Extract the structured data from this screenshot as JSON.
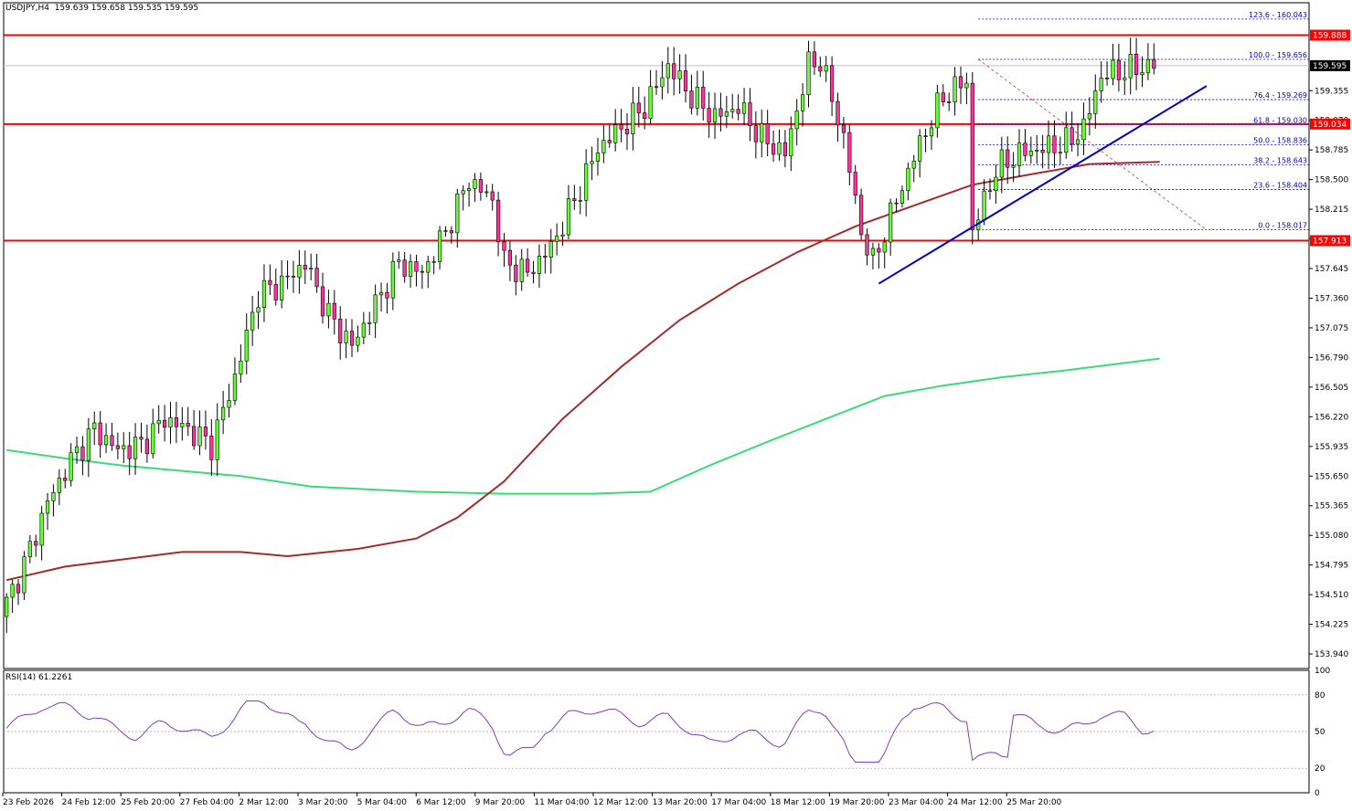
{
  "header": {
    "symbol": "USDJPY,H4",
    "ohlc": "159.639 159.658 159.535 159.595"
  },
  "rsi": {
    "label": "RSI(14) 61.2261"
  },
  "chart_data": {
    "type": "candlestick",
    "price_axis": {
      "min": 153.8,
      "max": 160.2,
      "ticks": [
        "159.355",
        "159.070",
        "158.785",
        "158.500",
        "158.215",
        "157.930",
        "157.645",
        "157.360",
        "157.075",
        "156.790",
        "156.505",
        "156.220",
        "155.935",
        "155.650",
        "155.365",
        "155.080",
        "154.795",
        "154.510",
        "154.225",
        "153.940"
      ],
      "tick_159640": "159.640"
    },
    "time_labels": [
      "23 Feb 2026",
      "24 Feb 12:00",
      "25 Feb 20:00",
      "27 Feb 04:00",
      "2 Mar 12:00",
      "3 Mar 20:00",
      "5 Mar 04:00",
      "6 Mar 12:00",
      "9 Mar 20:00",
      "11 Mar 04:00",
      "12 Mar 12:00",
      "13 Mar 20:00",
      "17 Mar 04:00",
      "18 Mar 12:00",
      "19 Mar 20:00",
      "23 Mar 04:00",
      "24 Mar 12:00",
      "25 Mar 20:00"
    ],
    "horizontal_lines": [
      {
        "price": 159.888,
        "label": "159.888",
        "color": "#ff0000"
      },
      {
        "price": 159.034,
        "label": "159.034",
        "color": "#ff0000"
      },
      {
        "price": 157.913,
        "label": "157.913",
        "color": "#ff0000"
      }
    ],
    "current_price": {
      "price": 159.595,
      "label": "159.595"
    },
    "fibonacci": {
      "levels": [
        {
          "price": 160.043,
          "label": "123.6 - 160.043"
        },
        {
          "price": 159.656,
          "label": "100.0 - 159.656"
        },
        {
          "price": 159.269,
          "label": "76.4 - 159.269"
        },
        {
          "price": 159.03,
          "label": "61.8 - 159.030"
        },
        {
          "price": 158.836,
          "label": "50.0 - 158.836"
        },
        {
          "price": 158.643,
          "label": "38.2 - 158.643"
        },
        {
          "price": 158.404,
          "label": "23.6 - 158.404"
        },
        {
          "price": 158.017,
          "label": "0.0 - 158.017"
        }
      ],
      "color": "#0000cc"
    },
    "trendline": {
      "from": {
        "bar": 149,
        "price": 157.5
      },
      "to": {
        "bar": 205,
        "price": 159.4
      },
      "color": "#0000cc"
    },
    "ma_red": {
      "color": "#a52a2a",
      "points": [
        [
          0,
          154.65
        ],
        [
          10,
          154.78
        ],
        [
          20,
          154.85
        ],
        [
          30,
          154.92
        ],
        [
          40,
          154.92
        ],
        [
          48,
          154.88
        ],
        [
          60,
          154.95
        ],
        [
          70,
          155.05
        ],
        [
          77,
          155.25
        ],
        [
          85,
          155.6
        ],
        [
          95,
          156.2
        ],
        [
          105,
          156.7
        ],
        [
          115,
          157.15
        ],
        [
          125,
          157.5
        ],
        [
          135,
          157.8
        ],
        [
          145,
          158.05
        ],
        [
          155,
          158.25
        ],
        [
          165,
          158.45
        ],
        [
          175,
          158.55
        ],
        [
          185,
          158.65
        ],
        [
          197,
          158.67
        ]
      ]
    },
    "ma_green": {
      "color": "#3cd97a",
      "points": [
        [
          0,
          155.9
        ],
        [
          10,
          155.82
        ],
        [
          20,
          155.75
        ],
        [
          30,
          155.7
        ],
        [
          40,
          155.65
        ],
        [
          52,
          155.55
        ],
        [
          70,
          155.5
        ],
        [
          85,
          155.48
        ],
        [
          100,
          155.48
        ],
        [
          110,
          155.5
        ],
        [
          120,
          155.75
        ],
        [
          130,
          155.98
        ],
        [
          140,
          156.2
        ],
        [
          150,
          156.42
        ],
        [
          160,
          156.52
        ],
        [
          170,
          156.6
        ],
        [
          180,
          156.66
        ],
        [
          197,
          156.78
        ]
      ]
    },
    "rsi_axis": {
      "ticks": [
        "100",
        "80",
        "50",
        "20",
        "0"
      ]
    },
    "candles_ohlc_generated": true
  }
}
